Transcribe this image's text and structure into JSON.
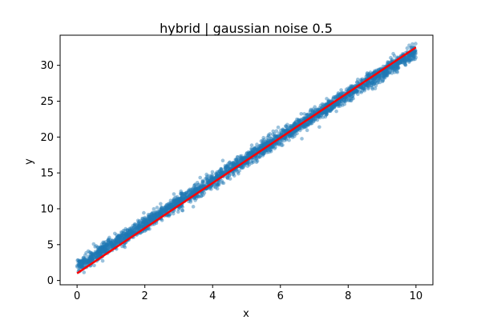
{
  "chart_data": {
    "type": "scatter",
    "title": "hybrid | gaussian noise 0.5",
    "xlabel": "x",
    "ylabel": "y",
    "xlim": [
      -0.5,
      10.5
    ],
    "ylim": [
      -0.6,
      34.2
    ],
    "xticks": [
      0,
      2,
      4,
      6,
      8,
      10
    ],
    "yticks": [
      0,
      5,
      10,
      15,
      20,
      25,
      30
    ],
    "grid": false,
    "legend": "none",
    "colors": {
      "scatter": "#1f77b4",
      "fit_line": "#ff0000",
      "axes": "#000000"
    },
    "scatter_summary": {
      "x_range": [
        0,
        10
      ],
      "center_line": {
        "y_at_x0": 1.9,
        "y_at_x10": 32.0
      },
      "noise_std": 0.5,
      "approx_points": 3000
    },
    "series": [
      {
        "type": "line",
        "x": [
          0,
          10
        ],
        "y": [
          1.0,
          32.5
        ]
      }
    ]
  }
}
